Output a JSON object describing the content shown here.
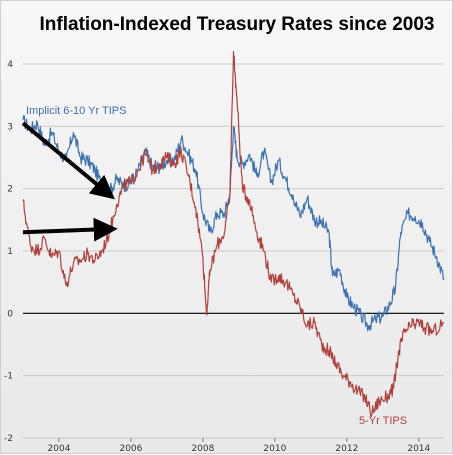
{
  "chart_data": {
    "type": "line",
    "title": "Inflation-Indexed Treasury Rates since 2003",
    "xlabel": "",
    "ylabel": "",
    "xlim": [
      2003.0,
      2014.7
    ],
    "ylim": [
      -2,
      4.4
    ],
    "x_ticks": [
      2004,
      2006,
      2008,
      2010,
      2012,
      2014
    ],
    "x_tick_labels": [
      "2004",
      "2006",
      "2008",
      "2010",
      "2012",
      "2014"
    ],
    "y_ticks": [
      -2,
      -1,
      0,
      1,
      2,
      3,
      4
    ],
    "y_tick_labels": [
      "-2",
      "-1",
      "0",
      "1",
      "2",
      "3",
      "4"
    ],
    "grid": {
      "horizontal": true,
      "vertical": false
    },
    "series": [
      {
        "name": "Implicit 6-10 Yr TIPS",
        "color": "#3a72b0",
        "label_placement": "top-left",
        "points": [
          [
            2003.0,
            3.1
          ],
          [
            2003.2,
            2.95
          ],
          [
            2003.4,
            3.05
          ],
          [
            2003.6,
            2.7
          ],
          [
            2003.8,
            2.9
          ],
          [
            2004.0,
            2.6
          ],
          [
            2004.2,
            2.45
          ],
          [
            2004.4,
            2.9
          ],
          [
            2004.6,
            2.5
          ],
          [
            2004.8,
            2.45
          ],
          [
            2005.0,
            2.3
          ],
          [
            2005.2,
            2.05
          ],
          [
            2005.4,
            1.95
          ],
          [
            2005.6,
            2.15
          ],
          [
            2005.8,
            2.05
          ],
          [
            2006.0,
            2.1
          ],
          [
            2006.2,
            2.3
          ],
          [
            2006.4,
            2.6
          ],
          [
            2006.6,
            2.35
          ],
          [
            2006.8,
            2.35
          ],
          [
            2007.0,
            2.45
          ],
          [
            2007.2,
            2.45
          ],
          [
            2007.4,
            2.8
          ],
          [
            2007.6,
            2.55
          ],
          [
            2007.8,
            2.3
          ],
          [
            2008.0,
            1.6
          ],
          [
            2008.2,
            1.3
          ],
          [
            2008.4,
            1.6
          ],
          [
            2008.6,
            1.6
          ],
          [
            2008.75,
            1.9
          ],
          [
            2008.85,
            3.0
          ],
          [
            2008.95,
            2.5
          ],
          [
            2009.1,
            2.4
          ],
          [
            2009.3,
            2.55
          ],
          [
            2009.5,
            2.2
          ],
          [
            2009.7,
            2.6
          ],
          [
            2009.9,
            2.1
          ],
          [
            2010.1,
            2.45
          ],
          [
            2010.3,
            2.15
          ],
          [
            2010.5,
            1.9
          ],
          [
            2010.7,
            1.55
          ],
          [
            2010.9,
            1.85
          ],
          [
            2011.1,
            1.5
          ],
          [
            2011.3,
            1.45
          ],
          [
            2011.5,
            1.3
          ],
          [
            2011.6,
            0.6
          ],
          [
            2011.8,
            0.7
          ],
          [
            2012.0,
            0.25
          ],
          [
            2012.2,
            0.1
          ],
          [
            2012.4,
            -0.05
          ],
          [
            2012.6,
            -0.2
          ],
          [
            2012.8,
            -0.1
          ],
          [
            2013.0,
            -0.05
          ],
          [
            2013.2,
            0.15
          ],
          [
            2013.35,
            0.4
          ],
          [
            2013.5,
            1.3
          ],
          [
            2013.7,
            1.6
          ],
          [
            2013.9,
            1.55
          ],
          [
            2014.1,
            1.45
          ],
          [
            2014.3,
            1.15
          ],
          [
            2014.5,
            0.9
          ],
          [
            2014.7,
            0.55
          ]
        ]
      },
      {
        "name": "5-Yr TIPS",
        "color": "#b0403a",
        "label_placement": "bottom-right",
        "points": [
          [
            2003.0,
            1.8
          ],
          [
            2003.2,
            1.1
          ],
          [
            2003.4,
            1.0
          ],
          [
            2003.6,
            1.2
          ],
          [
            2003.8,
            0.9
          ],
          [
            2004.0,
            1.0
          ],
          [
            2004.2,
            0.45
          ],
          [
            2004.4,
            0.8
          ],
          [
            2004.6,
            0.85
          ],
          [
            2004.8,
            0.95
          ],
          [
            2005.0,
            0.85
          ],
          [
            2005.2,
            1.0
          ],
          [
            2005.4,
            1.3
          ],
          [
            2005.6,
            1.75
          ],
          [
            2005.8,
            2.05
          ],
          [
            2006.0,
            2.1
          ],
          [
            2006.2,
            2.3
          ],
          [
            2006.4,
            2.55
          ],
          [
            2006.6,
            2.3
          ],
          [
            2006.8,
            2.4
          ],
          [
            2007.0,
            2.5
          ],
          [
            2007.2,
            2.4
          ],
          [
            2007.4,
            2.6
          ],
          [
            2007.6,
            2.2
          ],
          [
            2007.8,
            1.7
          ],
          [
            2008.0,
            0.9
          ],
          [
            2008.1,
            0.0
          ],
          [
            2008.2,
            0.7
          ],
          [
            2008.4,
            1.1
          ],
          [
            2008.6,
            1.3
          ],
          [
            2008.75,
            1.9
          ],
          [
            2008.85,
            4.2
          ],
          [
            2008.95,
            3.4
          ],
          [
            2009.1,
            2.0
          ],
          [
            2009.3,
            1.8
          ],
          [
            2009.5,
            1.3
          ],
          [
            2009.7,
            1.0
          ],
          [
            2009.9,
            0.5
          ],
          [
            2010.1,
            0.6
          ],
          [
            2010.3,
            0.5
          ],
          [
            2010.5,
            0.3
          ],
          [
            2010.7,
            0.1
          ],
          [
            2010.9,
            -0.2
          ],
          [
            2011.1,
            -0.15
          ],
          [
            2011.3,
            -0.5
          ],
          [
            2011.5,
            -0.6
          ],
          [
            2011.7,
            -0.8
          ],
          [
            2011.9,
            -1.0
          ],
          [
            2012.1,
            -1.1
          ],
          [
            2012.3,
            -1.25
          ],
          [
            2012.5,
            -1.35
          ],
          [
            2012.7,
            -1.6
          ],
          [
            2012.9,
            -1.4
          ],
          [
            2013.1,
            -1.35
          ],
          [
            2013.3,
            -1.2
          ],
          [
            2013.45,
            -0.6
          ],
          [
            2013.6,
            -0.3
          ],
          [
            2013.8,
            -0.2
          ],
          [
            2014.0,
            -0.15
          ],
          [
            2014.2,
            -0.25
          ],
          [
            2014.4,
            -0.3
          ],
          [
            2014.7,
            -0.15
          ]
        ]
      }
    ],
    "annotations": [
      {
        "type": "arrow",
        "from": [
          2003.0,
          3.05
        ],
        "to": [
          2005.3,
          1.95
        ],
        "color": "#000000"
      },
      {
        "type": "arrow",
        "from": [
          2003.0,
          1.3
        ],
        "to": [
          2005.3,
          1.35
        ],
        "color": "#000000"
      }
    ]
  }
}
